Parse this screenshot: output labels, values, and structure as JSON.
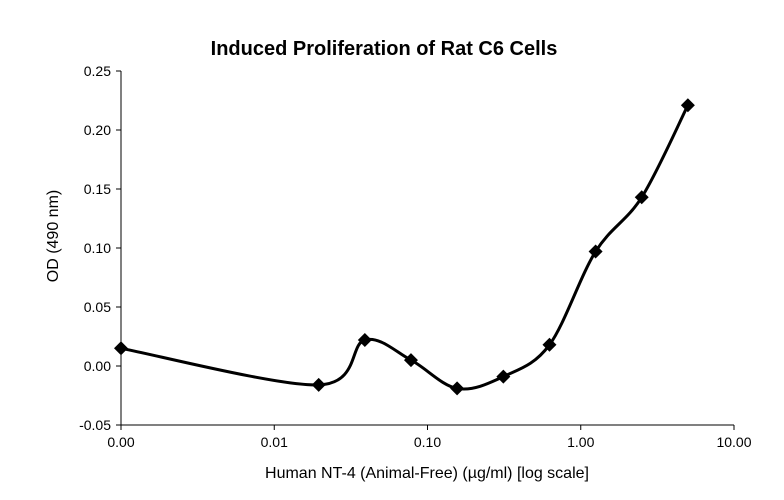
{
  "chart_data": {
    "type": "line",
    "title": "Induced Proliferation of Rat C6 Cells",
    "xlabel": "Human NT-4 (Animal-Free) (µg/ml) [log scale]",
    "ylabel": "OD (490 nm)",
    "x_scale": "log",
    "xlim": [
      0.001,
      10
    ],
    "ylim": [
      -0.05,
      0.25
    ],
    "x_ticks": [
      "0.00",
      "0.01",
      "0.10",
      "1.00",
      "10.00"
    ],
    "y_ticks": [
      "-0.05",
      "0.00",
      "0.05",
      "0.10",
      "0.15",
      "0.20",
      "0.25"
    ],
    "grid": false,
    "legend": "none",
    "marker": "diamond",
    "line_style": "smooth",
    "color": "#000000",
    "series": [
      {
        "x": [
          0.001,
          0.0195,
          0.039,
          0.078,
          0.156,
          0.3125,
          0.625,
          1.25,
          2.5,
          5
        ],
        "y": [
          0.015,
          -0.016,
          0.022,
          0.005,
          -0.019,
          -0.009,
          0.018,
          0.097,
          0.143,
          0.221
        ]
      }
    ]
  }
}
